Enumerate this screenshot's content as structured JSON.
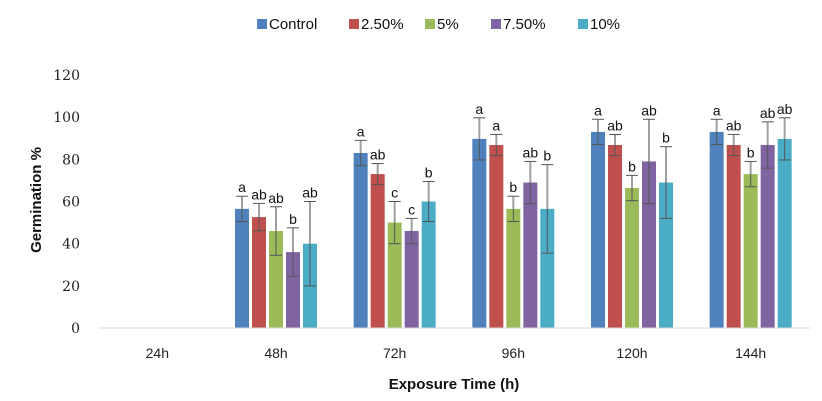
{
  "chart_data": {
    "type": "bar",
    "title": "",
    "xlabel": "Exposure Time (h)",
    "ylabel": "Germination %",
    "ylim": [
      0,
      120
    ],
    "yticks": [
      0,
      20,
      40,
      60,
      80,
      100,
      120
    ],
    "grid": false,
    "legend_position": "top-center",
    "categories": [
      "24h",
      "48h",
      "72h",
      "96h",
      "120h",
      "144h"
    ],
    "series": [
      {
        "name": "Control",
        "color": "#4F81BD",
        "values": [
          0,
          56.5,
          83,
          89.7,
          93,
          93
        ],
        "errors": [
          0,
          6,
          6,
          10,
          6,
          6
        ],
        "letters": [
          "",
          "a",
          "a",
          "a",
          "a",
          "a"
        ]
      },
      {
        "name": "2.50%",
        "color": "#C0504D",
        "values": [
          0,
          52.6,
          73,
          86.8,
          86.8,
          86.8
        ],
        "errors": [
          0,
          6.5,
          5,
          5,
          5,
          5
        ],
        "letters": [
          "",
          "ab",
          "ab",
          "a",
          "ab",
          "ab"
        ]
      },
      {
        "name": "5%",
        "color": "#9BBB59",
        "values": [
          0,
          46,
          50,
          56.5,
          66.4,
          73
        ],
        "errors": [
          0,
          11.5,
          10,
          6,
          6,
          6
        ],
        "letters": [
          "",
          "ab",
          "c",
          "b",
          "b",
          "b"
        ]
      },
      {
        "name": "7.50%",
        "color": "#8064A2",
        "values": [
          0,
          36,
          46,
          69,
          79,
          86.8
        ],
        "errors": [
          0,
          11.5,
          6,
          10,
          20,
          11
        ],
        "letters": [
          "",
          "b",
          "c",
          "ab",
          "ab",
          "ab"
        ]
      },
      {
        "name": "10%",
        "color": "#4BACC6",
        "values": [
          0,
          40,
          60,
          56.5,
          69,
          89.7
        ],
        "errors": [
          0,
          20,
          9.5,
          21,
          17,
          10
        ],
        "letters": [
          "",
          "ab",
          "b",
          "b",
          "b",
          "ab"
        ]
      }
    ]
  }
}
